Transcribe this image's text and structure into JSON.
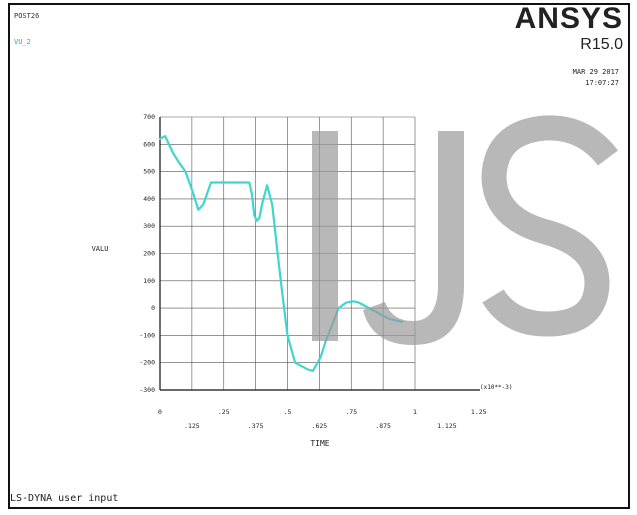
{
  "header": {
    "post_label": "POST26",
    "var_label": "VU_2",
    "brand": "ANSYS",
    "release": "R15.0",
    "date": "MAR 29 2017",
    "time": "17:07:27"
  },
  "footer": {
    "text": "LS-DYNA user input"
  },
  "watermark": {
    "text": "IJS"
  },
  "colors": {
    "curve": "#3fd6d0",
    "grid": "#555555",
    "watermark": "#9a9a9a"
  },
  "chart_data": {
    "type": "line",
    "title": "",
    "xlabel": "TIME",
    "ylabel": "VALU",
    "x_multiplier_label": "(x10**-3)",
    "xlim": [
      0,
      1.25
    ],
    "ylim": [
      -300,
      700
    ],
    "grid": true,
    "x_ticks_top": [
      "0",
      ".25",
      ".5",
      ".75",
      "1",
      "1.25"
    ],
    "x_ticks_bottom": [
      ".125",
      ".375",
      ".625",
      ".875",
      "1.125"
    ],
    "y_ticks": [
      "700",
      "600",
      "500",
      "400",
      "300",
      "200",
      "100",
      "0",
      "-100",
      "-200",
      "-300"
    ],
    "series": [
      {
        "x": [
          0,
          0.02,
          0.05,
          0.07,
          0.1,
          0.13,
          0.15,
          0.17,
          0.2,
          0.25,
          0.3,
          0.35,
          0.36,
          0.37,
          0.38,
          0.39,
          0.4,
          0.42,
          0.44,
          0.46,
          0.48,
          0.5,
          0.53,
          0.56,
          0.58,
          0.6,
          0.63,
          0.65,
          0.68,
          0.7,
          0.73,
          0.76,
          0.78,
          0.82,
          0.86,
          0.9,
          0.95
        ],
        "values": [
          620,
          630,
          570,
          540,
          500,
          420,
          360,
          380,
          460,
          460,
          460,
          460,
          420,
          340,
          320,
          330,
          380,
          450,
          380,
          210,
          50,
          -100,
          -200,
          -215,
          -225,
          -230,
          -180,
          -120,
          -50,
          0,
          20,
          25,
          20,
          0,
          -20,
          -40,
          -50
        ]
      }
    ]
  }
}
